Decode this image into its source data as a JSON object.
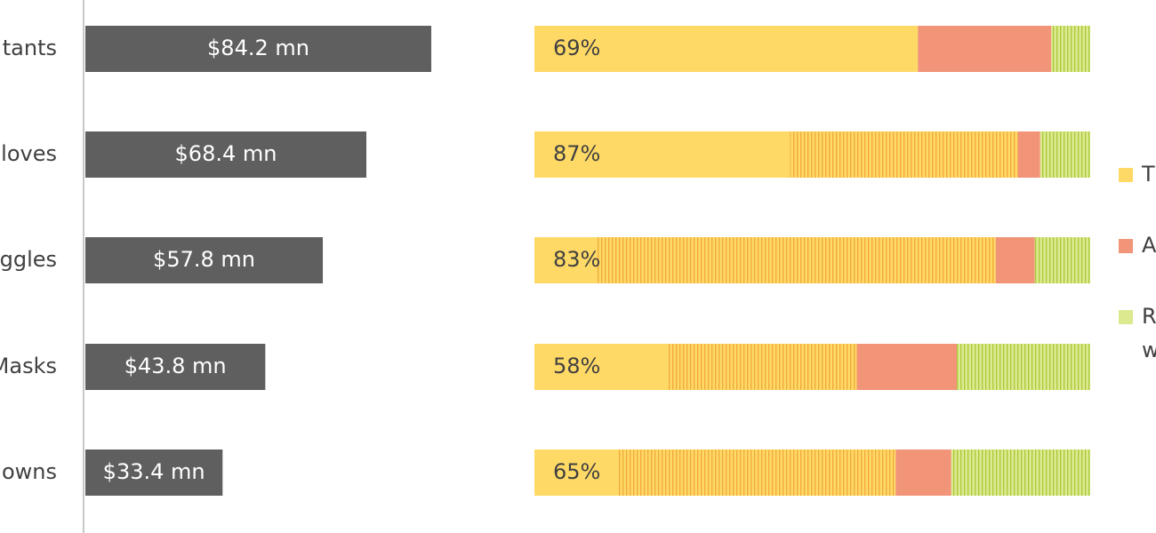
{
  "chart_data": [
    {
      "type": "hbar",
      "categories": [
        "tants",
        "loves",
        "ggles",
        "Masks",
        "owns"
      ],
      "values": [
        84.2,
        68.4,
        57.8,
        43.8,
        33.4
      ],
      "value_labels": [
        "$84.2 mn",
        "$68.4 mn",
        "$57.8 mn",
        "$43.8 mn",
        "$33.4 mn"
      ],
      "color": "#5f5f5f",
      "xlim": [
        0,
        100
      ]
    },
    {
      "type": "stacked_hbar",
      "xlim": [
        0,
        100
      ],
      "legend": "right",
      "series": [
        {
          "name": "T",
          "color": "#ffd966",
          "hatch_color": "#f2a93b",
          "values": [
            69,
            87,
            83,
            58,
            65
          ],
          "value_labels": [
            "69%",
            "87%",
            "83%",
            "58%",
            "65%"
          ],
          "hatched_values": [
            0,
            41,
            72,
            34,
            50
          ]
        },
        {
          "name": "A",
          "color": "#f19478",
          "values": [
            24,
            4,
            7,
            18,
            10
          ]
        },
        {
          "name": "R w",
          "color": "#dce98f",
          "hatch_color": "#a9c93a",
          "hatched": true,
          "values": [
            7,
            9,
            10,
            24,
            25
          ]
        }
      ]
    }
  ]
}
